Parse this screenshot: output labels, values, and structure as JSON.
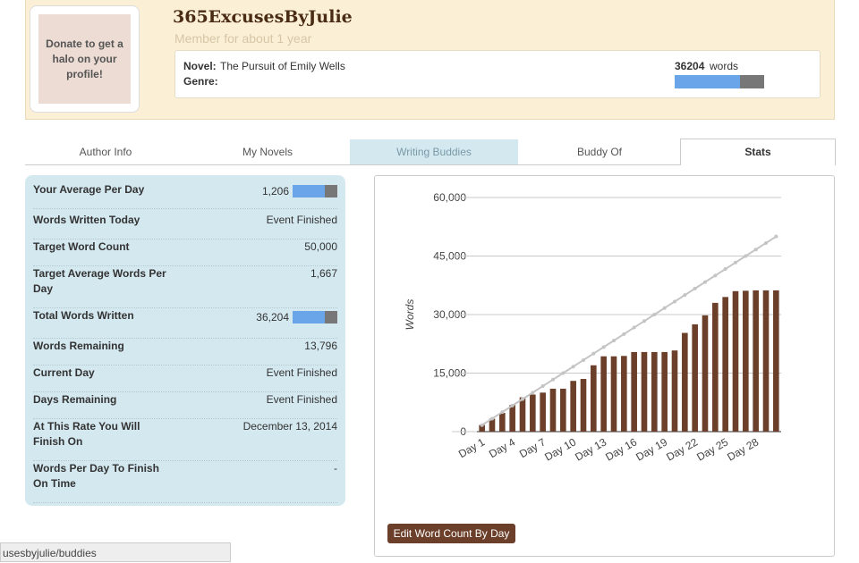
{
  "profile": {
    "donate": "Donate to get a halo on your profile!",
    "username": "365ExcusesByJulie",
    "member_since": "Member for about 1 year",
    "novel_label": "Novel:",
    "novel": "The Pursuit of Emily Wells",
    "genre_label": "Genre:",
    "word_count": "36204",
    "word_unit": "words"
  },
  "tabs": [
    "Author Info",
    "My Novels",
    "Writing Buddies",
    "Buddy Of",
    "Stats"
  ],
  "stats": [
    {
      "label": "Your Average Per Day",
      "value": "1,206"
    },
    {
      "label": "Words Written Today",
      "value": "Event Finished"
    },
    {
      "label": "Target Word Count",
      "value": "50,000"
    },
    {
      "label": "Target Average Words Per Day",
      "value": "1,667"
    },
    {
      "label": "Total Words Written",
      "value": "36,204"
    },
    {
      "label": "Words Remaining",
      "value": "13,796"
    },
    {
      "label": "Current Day",
      "value": "Event Finished"
    },
    {
      "label": "Days Remaining",
      "value": "Event Finished"
    },
    {
      "label": "At This Rate You Will Finish On",
      "value": "December 13, 2014"
    },
    {
      "label": "Words Per Day To Finish On Time",
      "value": "-"
    }
  ],
  "chart_data": {
    "type": "bar",
    "y_label": "Words",
    "categories": [
      "Day 1",
      null,
      null,
      "Day 4",
      null,
      null,
      "Day 7",
      null,
      null,
      "Day 10",
      null,
      null,
      "Day 13",
      null,
      null,
      "Day 16",
      null,
      null,
      "Day 19",
      null,
      null,
      "Day 22",
      null,
      null,
      "Day 25",
      null,
      null,
      "Day 28",
      null,
      null
    ],
    "series": [
      {
        "type": "bar",
        "color": "#6b3f2a",
        "values": [
          1700,
          3300,
          4800,
          6800,
          8800,
          9500,
          10000,
          11000,
          11000,
          13000,
          13500,
          17000,
          19300,
          19300,
          19400,
          20400,
          20400,
          20400,
          20400,
          20800,
          25300,
          27500,
          29800,
          33000,
          34500,
          36000,
          36100,
          36204,
          36204,
          36204
        ]
      },
      {
        "type": "line",
        "color": "#c4c4c4",
        "values": [
          1667,
          3333,
          5000,
          6667,
          8333,
          10000,
          11667,
          13333,
          15000,
          16667,
          18333,
          20000,
          21667,
          23333,
          25000,
          26667,
          28333,
          30000,
          31667,
          33333,
          35000,
          36667,
          38333,
          40000,
          41667,
          43333,
          45000,
          46667,
          48333,
          50000
        ]
      }
    ],
    "ylim": [
      0,
      60000
    ],
    "yticks": [
      0,
      {
        "value": 15000,
        "label": "15,000"
      },
      {
        "value": 30000,
        "label": "30,000"
      },
      {
        "value": 45000,
        "label": "45,000"
      },
      {
        "value": 60000,
        "label": "60,000"
      }
    ],
    "grid": true
  },
  "edit_button": "Edit Word Count By Day",
  "status_url": "usesbyjulie/buddies"
}
